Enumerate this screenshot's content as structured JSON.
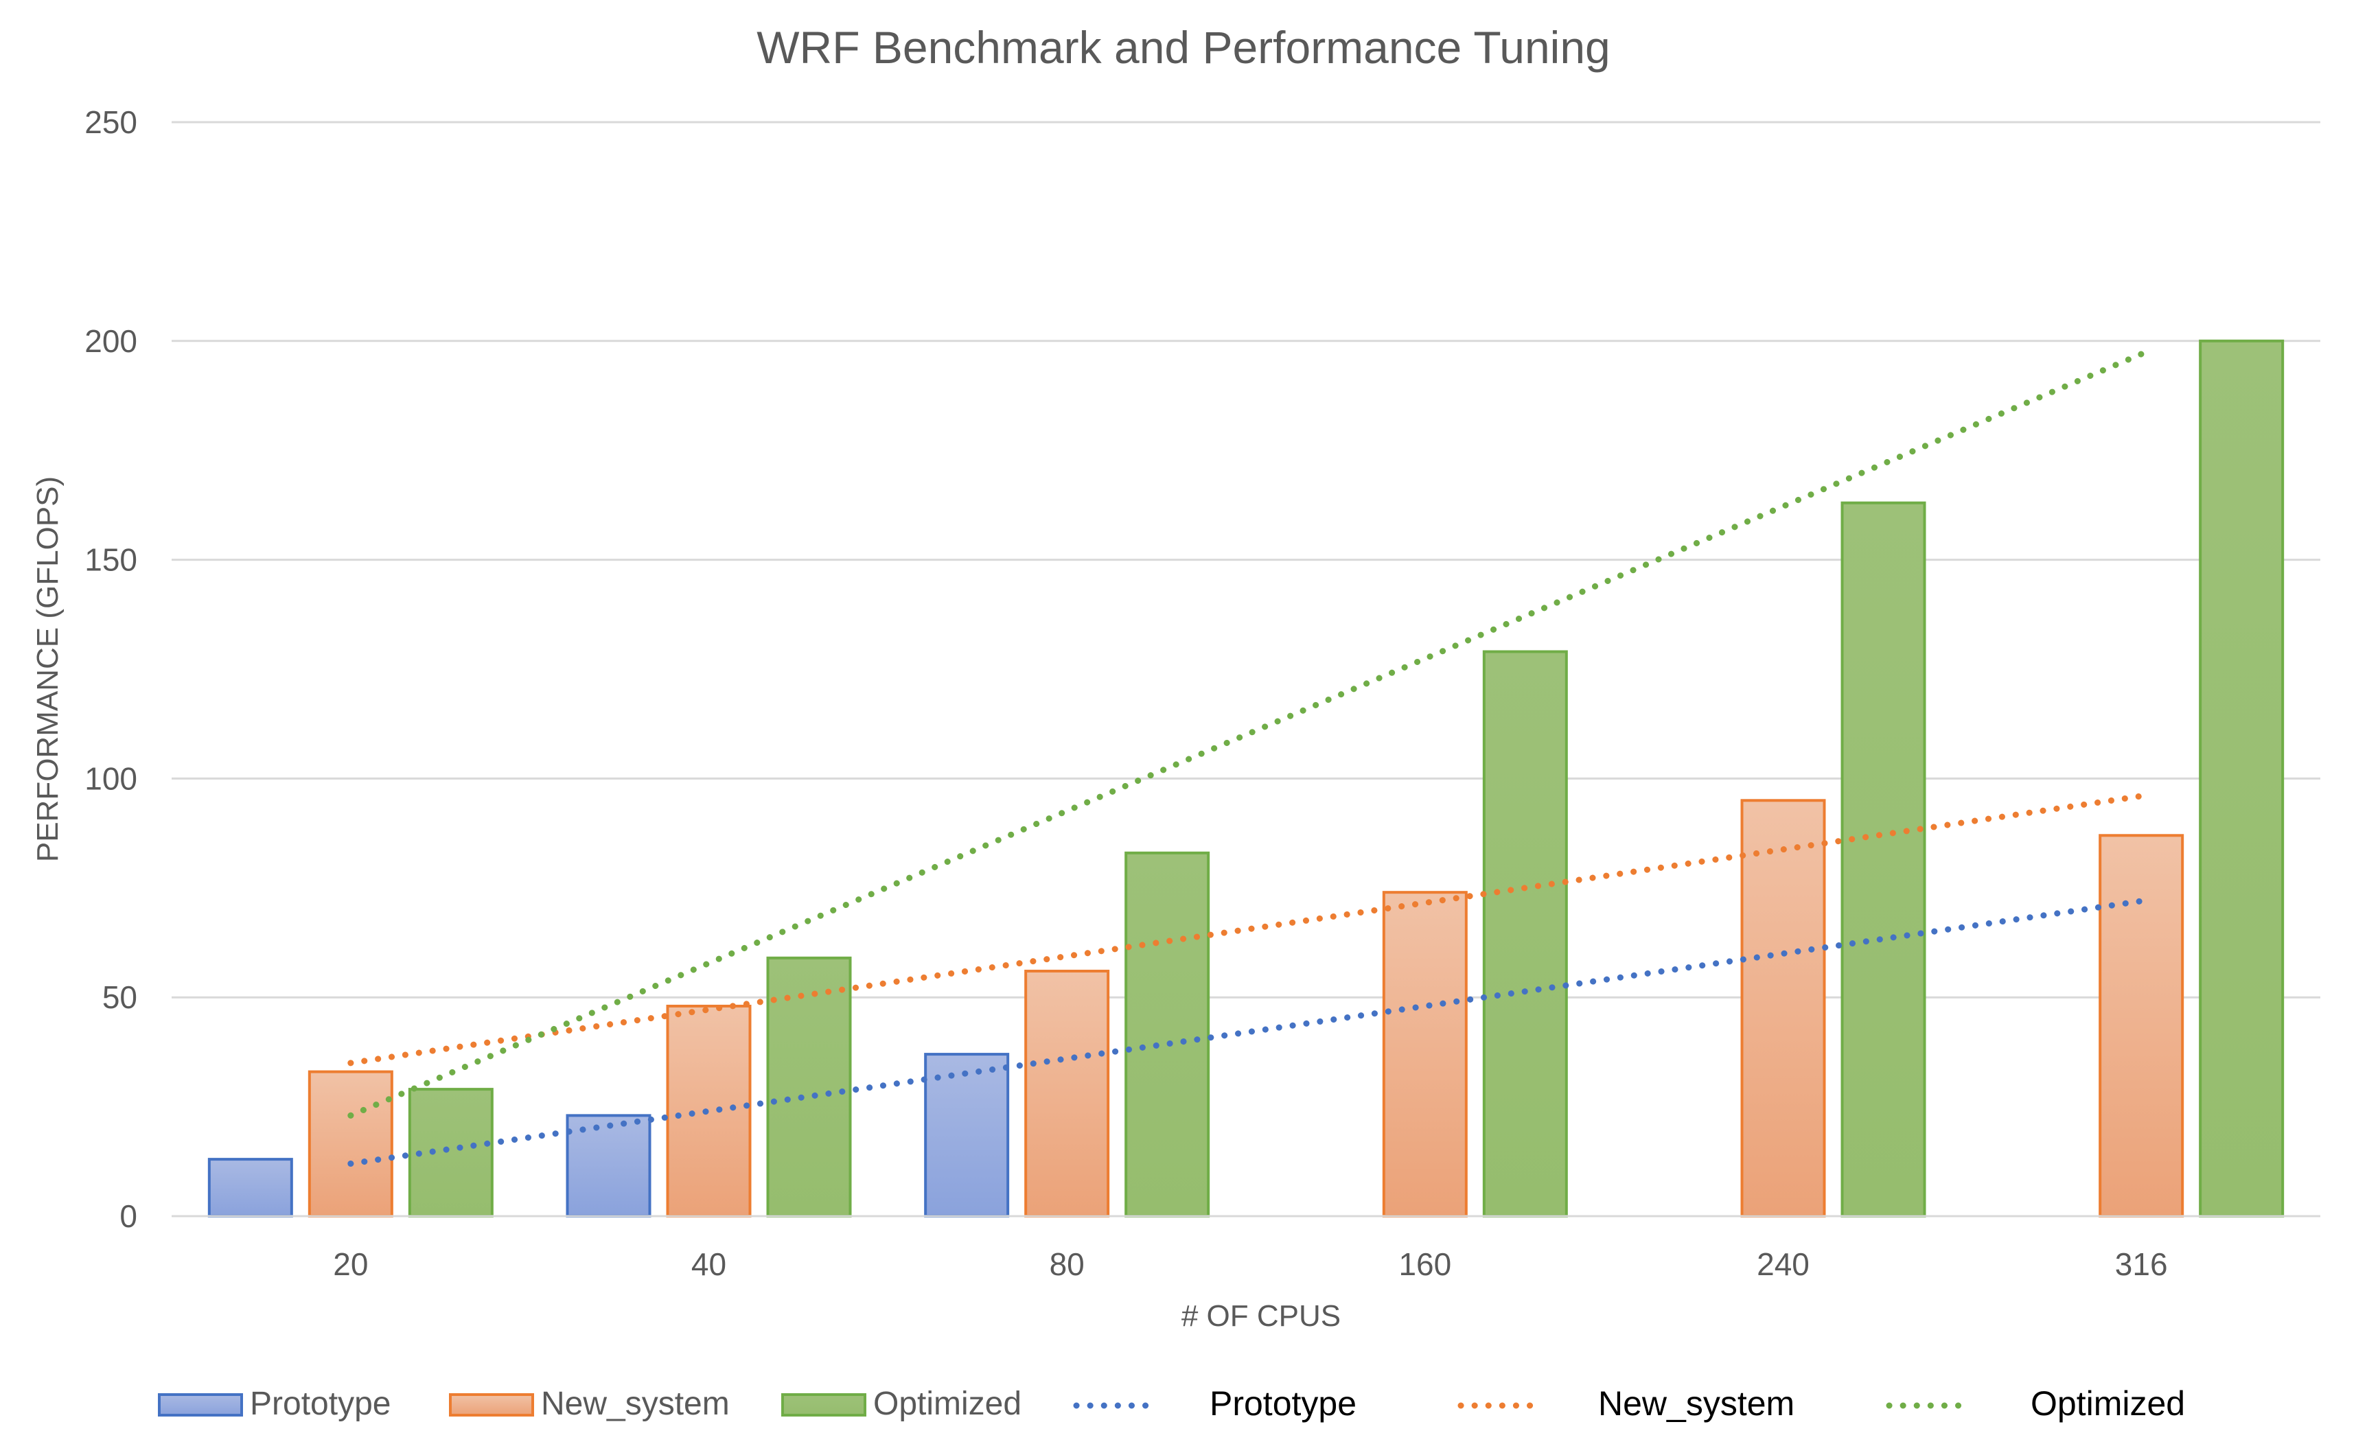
{
  "chart_data": {
    "type": "bar",
    "title": "WRF Benchmark and Performance Tuning",
    "xlabel": "# OF CPUS",
    "ylabel": "PERFORMANCE (GFLOPS)",
    "ylim": [
      0,
      250
    ],
    "yticks": [
      "0",
      "50",
      "100",
      "150",
      "200",
      "250"
    ],
    "categories": [
      "20",
      "40",
      "80",
      "160",
      "240",
      "316"
    ],
    "grid": true,
    "legend_position": "bottom",
    "series": [
      {
        "name": "Prototype",
        "values": [
          13,
          23,
          37,
          null,
          null,
          null
        ],
        "color": "#4472c4"
      },
      {
        "name": "New_system",
        "values": [
          33,
          48,
          56,
          74,
          95,
          87
        ],
        "color": "#ed7d31"
      },
      {
        "name": "Optimized",
        "values": [
          29,
          59,
          83,
          129,
          163,
          200
        ],
        "color": "#70ad47"
      }
    ],
    "trendlines": [
      {
        "name": "Prototype",
        "type": "linear",
        "start": 12,
        "end": 72,
        "color": "#4472c4"
      },
      {
        "name": "New_system",
        "type": "linear",
        "start": 35,
        "end": 96,
        "color": "#ed7d31"
      },
      {
        "name": "Optimized",
        "type": "linear",
        "start": 23,
        "end": 197,
        "color": "#70ad47"
      }
    ]
  }
}
